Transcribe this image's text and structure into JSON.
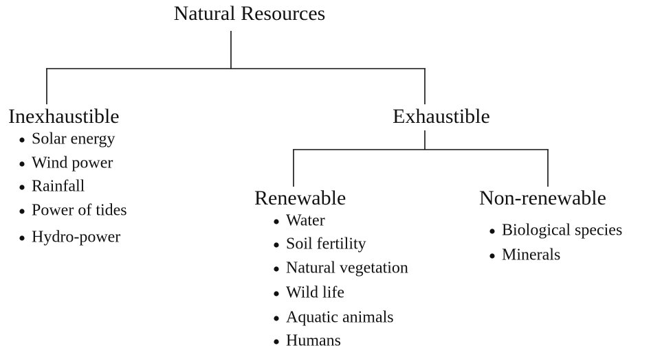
{
  "root": "Natural Resources",
  "nodes": [
    {
      "label": "Inexhaustible",
      "items": [
        "Solar energy",
        "Wind power",
        "Rainfall",
        "Power of tides",
        "Hydro-power"
      ]
    },
    {
      "label": "Exhaustible",
      "items": []
    },
    {
      "label": "Renewable",
      "items": [
        "Water",
        "Soil fertility",
        "Natural vegetation",
        "Wild life",
        "Aquatic animals",
        "Humans"
      ]
    },
    {
      "label": "Non-renewable",
      "items": [
        "Biological species",
        "Minerals"
      ]
    }
  ]
}
